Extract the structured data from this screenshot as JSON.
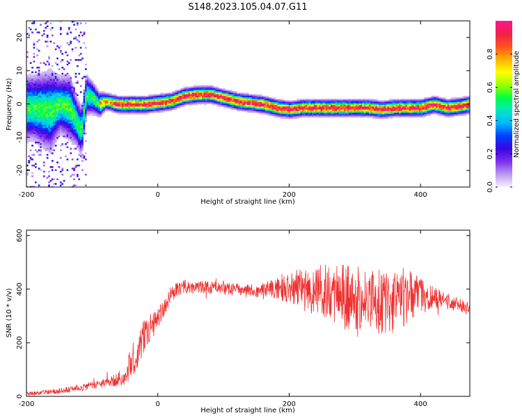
{
  "title": "S148.2023.105.04.07.G11",
  "chart_data": [
    {
      "type": "heatmap",
      "name": "spectrogram",
      "xlabel": "Height of straight line (km)",
      "ylabel": "Frequency (Hz)",
      "xlim": [
        -200,
        475
      ],
      "ylim": [
        -25,
        25
      ],
      "x_ticks": [
        -200,
        0,
        200,
        400
      ],
      "y_ticks": [
        -20,
        -10,
        0,
        10,
        20
      ],
      "colorbar": {
        "label": "Normalized spectral amplitude",
        "range": [
          0,
          1
        ],
        "ticks": [
          0.0,
          0.2,
          0.4,
          0.6,
          0.8
        ],
        "colormap": [
          "#f8f0ff",
          "#b99af0",
          "#7d2ef0",
          "#3a05e0",
          "#0040ff",
          "#00b8ff",
          "#00e8c0",
          "#00ff40",
          "#a0ff00",
          "#ffff00",
          "#ffb000",
          "#ff5020",
          "#f0204a",
          "#ff1493"
        ]
      },
      "ridge": {
        "x": [
          -190,
          -165,
          -150,
          -135,
          -125,
          -117,
          -110,
          -100,
          -90,
          -80,
          -60,
          -40,
          -20,
          0,
          20,
          40,
          60,
          80,
          100,
          120,
          140,
          160,
          180,
          200,
          220,
          240,
          260,
          280,
          300,
          320,
          340,
          360,
          380,
          400,
          420,
          440,
          460,
          475
        ],
        "frequency": [
          -1,
          -2,
          0,
          -1,
          -5,
          -8,
          3,
          2,
          0,
          1,
          0,
          0,
          0,
          0.5,
          1,
          2.5,
          3,
          3,
          2,
          1,
          0.5,
          0,
          -1,
          -1.5,
          -1,
          -1,
          -1,
          -1,
          -1,
          -1,
          -1.5,
          -1,
          -1,
          -1,
          0,
          -1,
          -0.5,
          0
        ],
        "width": [
          8,
          10,
          7,
          8,
          6,
          6,
          5,
          4,
          3,
          2,
          2,
          2,
          2,
          2,
          2,
          2,
          2,
          2,
          2,
          2,
          2,
          2,
          2,
          2,
          2,
          2,
          2,
          2,
          2,
          2,
          2,
          2,
          2,
          2,
          2,
          2,
          2,
          2
        ]
      }
    },
    {
      "type": "line",
      "name": "snr",
      "xlabel": "Height of straight line (km)",
      "ylabel": "SNR (10 * v/v)",
      "xlim": [
        -200,
        475
      ],
      "ylim": [
        0,
        620
      ],
      "x_ticks": [
        -200,
        0,
        200,
        400
      ],
      "y_ticks": [
        0,
        200,
        400,
        600
      ],
      "color": "#f03030",
      "envelope": {
        "x": [
          -200,
          -150,
          -100,
          -70,
          -50,
          -40,
          -30,
          -20,
          -10,
          0,
          10,
          20,
          30,
          40,
          60,
          80,
          100,
          120,
          140,
          160,
          180,
          200,
          220,
          240,
          260,
          280,
          300,
          320,
          340,
          360,
          380,
          400,
          420,
          440,
          460,
          475
        ],
        "mean": [
          10,
          20,
          40,
          55,
          80,
          130,
          170,
          230,
          260,
          290,
          330,
          380,
          400,
          410,
          405,
          410,
          400,
          400,
          395,
          395,
          400,
          405,
          400,
          390,
          385,
          375,
          365,
          360,
          360,
          360,
          365,
          375,
          370,
          355,
          340,
          320
        ],
        "noise": [
          8,
          10,
          15,
          20,
          40,
          60,
          70,
          60,
          50,
          40,
          35,
          30,
          25,
          25,
          25,
          25,
          25,
          25,
          25,
          30,
          40,
          60,
          80,
          100,
          110,
          120,
          120,
          120,
          130,
          130,
          110,
          70,
          40,
          30,
          25,
          25
        ]
      }
    }
  ]
}
